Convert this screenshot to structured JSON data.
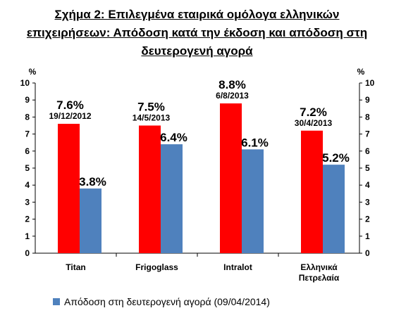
{
  "title_line1": "Σχήμα 2: Επιλεγμένα εταιρικά ομόλογα ελληνικών",
  "title_line2": "επιχειρήσεων: Απόδοση κατά την έκδοση και απόδοση στη",
  "title_line3": "δευτερογενή αγορά",
  "colors": {
    "issue": "#ff0000",
    "secondary": "#4f81bd"
  },
  "chart_data": {
    "type": "bar",
    "categories": [
      "Titan",
      "Frigoglass",
      "Intralot",
      "Ελληνικά Πετρελαία"
    ],
    "category_lines": [
      [
        "Titan"
      ],
      [
        "Frigoglass"
      ],
      [
        "Intralot"
      ],
      [
        "Ελληνικά",
        "Πετρελαία"
      ]
    ],
    "series": [
      {
        "values": [
          7.6,
          7.5,
          8.8,
          7.2
        ],
        "labels": [
          "7.6%",
          "7.5%",
          "8.8%",
          "7.2%"
        ],
        "dates": [
          "19/12/2012",
          "14/5/2013",
          "6/8/2013",
          "30/4/2013"
        ]
      },
      {
        "name": "Απόδοση στη δευτερογενή αγορά (09/04/2014)",
        "values": [
          3.8,
          6.4,
          6.1,
          5.2
        ],
        "labels": [
          "3.8%",
          "6.4%",
          "6.1%",
          "5.2%"
        ]
      }
    ],
    "ylim": [
      0,
      10
    ],
    "yticks": [
      "0",
      "1",
      "2",
      "3",
      "4",
      "5",
      "6",
      "7",
      "8",
      "9",
      "10"
    ],
    "ylabel_left": "%",
    "ylabel_right": "%",
    "legend": "bottom",
    "grid": false
  }
}
